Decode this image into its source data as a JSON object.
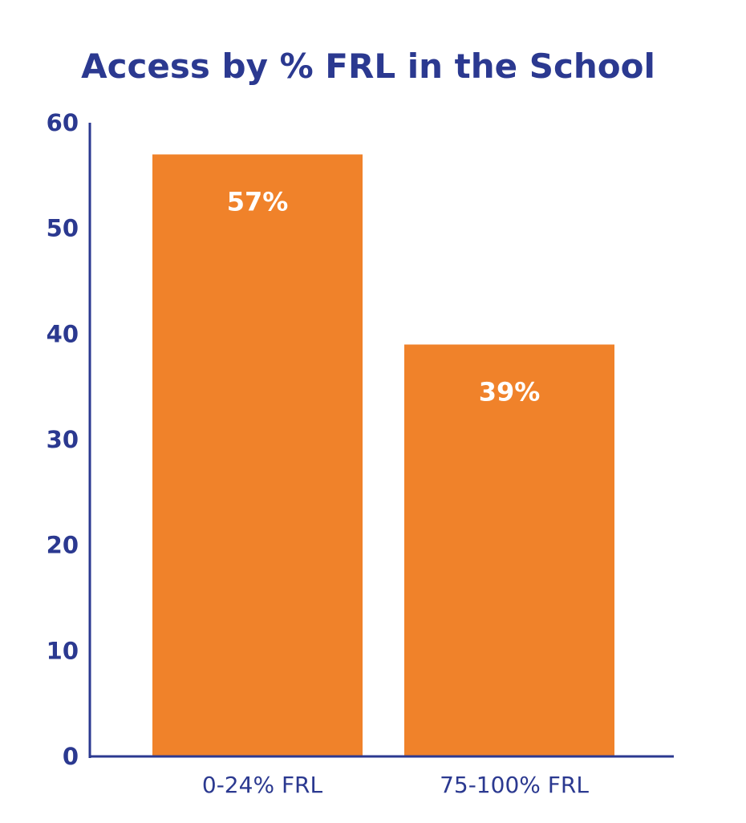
{
  "colors": {
    "navy": "#2b3990",
    "bar": "#f0822a",
    "data_label": "#ffffff",
    "background": "#ffffff"
  },
  "chart_data": {
    "type": "bar",
    "title": "Access by % FRL in the School",
    "xlabel": "",
    "ylabel": "",
    "categories": [
      "0-24% FRL",
      "75-100% FRL"
    ],
    "values": [
      57,
      39
    ],
    "data_labels": [
      "57%",
      "39%"
    ],
    "ylim": [
      0,
      60
    ],
    "yticks": [
      0,
      10,
      20,
      30,
      40,
      50,
      60
    ],
    "ytick_labels": [
      "0",
      "10",
      "20",
      "30",
      "40",
      "50",
      "60"
    ],
    "grid": false,
    "legend": "none"
  }
}
